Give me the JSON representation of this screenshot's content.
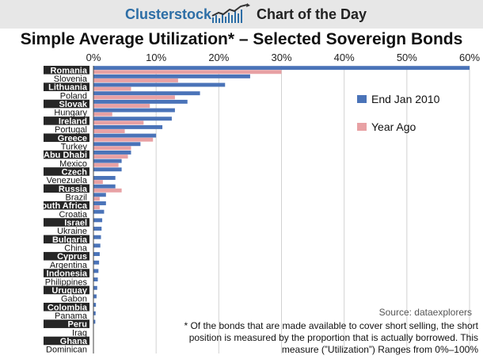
{
  "header": {
    "brand": "Clusterstock",
    "subtitle": "Chart of the Day",
    "logo_icon": "chart-trend-icon"
  },
  "chart_data": {
    "type": "bar",
    "orientation": "horizontal",
    "title": "Simple Average Utilization* – Selected Sovereign Bonds",
    "xlabel": "",
    "ylabel": "",
    "xlim": [
      0,
      60
    ],
    "ticks": [
      "0%",
      "10%",
      "20%",
      "30%",
      "40%",
      "50%",
      "60%"
    ],
    "tick_values": [
      0,
      10,
      20,
      30,
      40,
      50,
      60
    ],
    "grid": true,
    "legend_position": "right",
    "categories": [
      "Romania",
      "Slovenia",
      "Lithuania",
      "Poland",
      "Slovak",
      "Hungary",
      "Ireland",
      "Portugal",
      "Greece",
      "Turkey",
      "Abu Dhabi",
      "Mexico",
      "Czech",
      "Venezuela",
      "Russia",
      "Brazil",
      "South Africa",
      "Croatia",
      "Israel",
      "Ukraine",
      "Bulgaria",
      "China",
      "Cyprus",
      "Argentina",
      "Indonesia",
      "Philippines",
      "Uruguay",
      "Gabon",
      "Colombia",
      "Panama",
      "Peru",
      "Iraq",
      "Ghana",
      "Dominican"
    ],
    "highlighted": [
      "Romania",
      "Lithuania",
      "Slovak",
      "Ireland",
      "Greece",
      "Abu Dhabi",
      "Czech",
      "Russia",
      "South Africa",
      "Israel",
      "Bulgaria",
      "Cyprus",
      "Indonesia",
      "Uruguay",
      "Colombia",
      "Peru",
      "Ghana"
    ],
    "series": [
      {
        "name": "End Jan 2010",
        "color": "#4a73b8",
        "values": [
          60,
          25,
          21,
          17,
          15,
          13,
          12.5,
          11,
          10,
          7.5,
          6,
          4.5,
          4.5,
          3.5,
          3.5,
          2,
          2,
          1.7,
          1.4,
          1.3,
          1.2,
          1.1,
          1,
          0.9,
          0.8,
          0.7,
          0.6,
          0.5,
          0.4,
          0.35,
          0.3,
          0,
          0,
          0
        ]
      },
      {
        "name": "Year Ago",
        "color": "#e8a1a4",
        "values": [
          30,
          13.5,
          6,
          13,
          9,
          3,
          8,
          5,
          9.5,
          6,
          5.5,
          4,
          0,
          1.5,
          4.5,
          1,
          1,
          0,
          0,
          0,
          0,
          0,
          0,
          0,
          0,
          0,
          0,
          0,
          0,
          0,
          0,
          0,
          0,
          0
        ]
      }
    ],
    "source": "Source: dataexplorers",
    "footnote": "* Of the bonds that are made available to cover short selling, the short position is measured by the proportion that is actually borrowed. This measure (”Utilization”) Ranges from 0%–100%"
  }
}
